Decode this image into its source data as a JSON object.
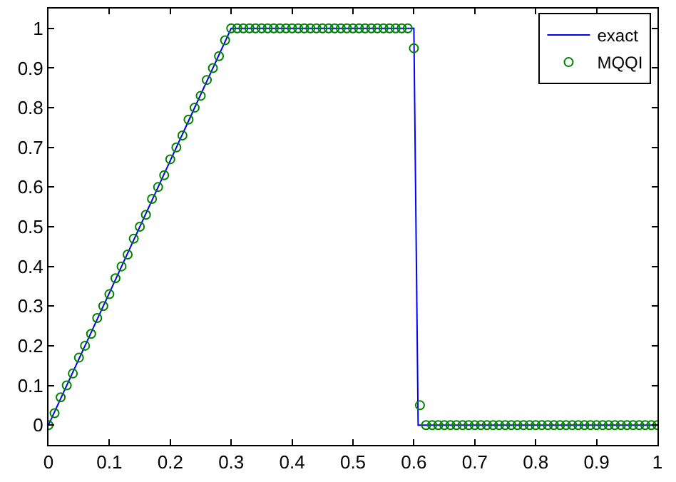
{
  "chart_data": {
    "type": "line",
    "xlim": [
      0,
      1
    ],
    "ylim": [
      -0.05,
      1.05
    ],
    "xticks": [
      0,
      0.1,
      0.2,
      0.3,
      0.4,
      0.5,
      0.6,
      0.7,
      0.8,
      0.9,
      1
    ],
    "yticks": [
      0,
      0.1,
      0.2,
      0.3,
      0.4,
      0.5,
      0.6,
      0.7,
      0.8,
      0.9,
      1
    ],
    "grid": false,
    "legend": "top right",
    "series": [
      {
        "name": "exact",
        "color": "#0000ff",
        "marker": "none",
        "line_style": "solid",
        "x": [
          0,
          0.3,
          0.6,
          0.607,
          1
        ],
        "values": [
          0,
          1,
          1,
          0,
          0
        ]
      },
      {
        "name": "MQQI",
        "type": "scatter",
        "color": "#008000",
        "marker": "circle",
        "x": [
          0,
          0.01,
          0.02,
          0.03,
          0.04,
          0.05,
          0.06,
          0.07,
          0.08,
          0.09,
          0.1,
          0.11,
          0.12,
          0.13,
          0.14,
          0.15,
          0.16,
          0.17,
          0.18,
          0.19,
          0.2,
          0.21,
          0.22,
          0.23,
          0.24,
          0.25,
          0.26,
          0.27,
          0.28,
          0.29,
          0.3,
          0.31,
          0.32,
          0.33,
          0.34,
          0.35,
          0.36,
          0.37,
          0.38,
          0.39,
          0.4,
          0.41,
          0.42,
          0.43,
          0.44,
          0.45,
          0.46,
          0.47,
          0.48,
          0.49,
          0.5,
          0.51,
          0.52,
          0.53,
          0.54,
          0.55,
          0.56,
          0.57,
          0.58,
          0.59,
          0.6,
          0.61,
          0.62,
          0.63,
          0.64,
          0.65,
          0.66,
          0.67,
          0.68,
          0.69,
          0.7,
          0.71,
          0.72,
          0.73,
          0.74,
          0.75,
          0.76,
          0.77,
          0.78,
          0.79,
          0.8,
          0.81,
          0.82,
          0.83,
          0.84,
          0.85,
          0.86,
          0.87,
          0.88,
          0.89,
          0.9,
          0.91,
          0.92,
          0.93,
          0.94,
          0.95,
          0.96,
          0.97,
          0.98,
          0.99,
          1
        ],
        "values": [
          0,
          0.03,
          0.07,
          0.1,
          0.13,
          0.17,
          0.2,
          0.23,
          0.27,
          0.3,
          0.33,
          0.37,
          0.4,
          0.43,
          0.47,
          0.5,
          0.53,
          0.57,
          0.6,
          0.63,
          0.67,
          0.7,
          0.73,
          0.77,
          0.8,
          0.83,
          0.87,
          0.9,
          0.93,
          0.97,
          1,
          1,
          1,
          1,
          1,
          1,
          1,
          1,
          1,
          1,
          1,
          1,
          1,
          1,
          1,
          1,
          1,
          1,
          1,
          1,
          1,
          1,
          1,
          1,
          1,
          1,
          1,
          1,
          1,
          1,
          0.95,
          0.05,
          0,
          0,
          0,
          0,
          0,
          0,
          0,
          0,
          0,
          0,
          0,
          0,
          0,
          0,
          0,
          0,
          0,
          0,
          0,
          0,
          0,
          0,
          0,
          0,
          0,
          0,
          0,
          0,
          0,
          0,
          0,
          0,
          0,
          0,
          0,
          0,
          0,
          0,
          0
        ]
      }
    ]
  }
}
